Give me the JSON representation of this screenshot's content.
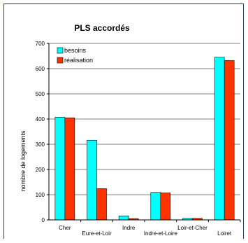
{
  "chart_data": {
    "type": "bar",
    "title": "PLS accordés",
    "ylabel": "nombre de logements",
    "xlabel": "",
    "ylim": [
      0,
      700
    ],
    "yticks": [
      0,
      100,
      200,
      300,
      400,
      500,
      600,
      700
    ],
    "grid": true,
    "legend_position": "top-left",
    "categories": [
      "Cher",
      "Eure-et-Loir",
      "Indre",
      "Indre-et-Loire",
      "Loir-et-Cher",
      "Loiret"
    ],
    "series": [
      {
        "name": "besoins",
        "color": "#00ffff",
        "values": [
          407,
          316,
          16,
          109,
          6,
          645
        ]
      },
      {
        "name": "réalisation",
        "color": "#ff3300",
        "values": [
          405,
          124,
          5,
          107,
          6,
          632
        ]
      }
    ]
  }
}
